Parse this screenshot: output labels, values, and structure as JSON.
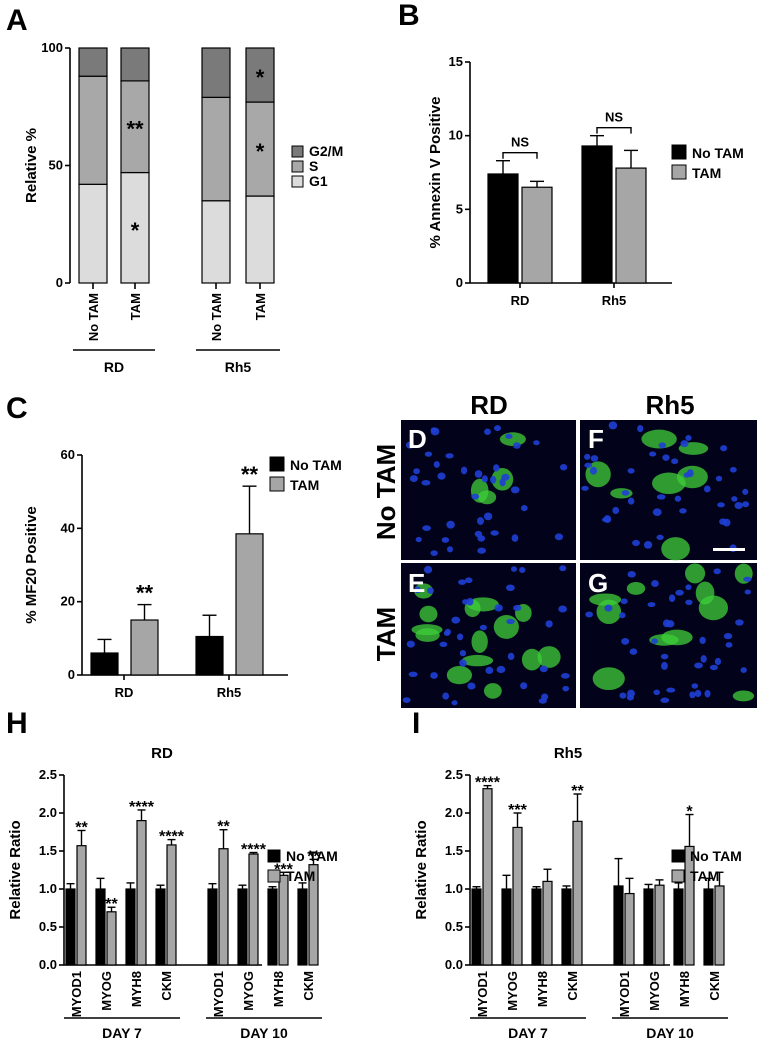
{
  "panels": {
    "A": {
      "letter": "A"
    },
    "B": {
      "letter": "B"
    },
    "C": {
      "letter": "C"
    },
    "D": {
      "letter": "D"
    },
    "E": {
      "letter": "E"
    },
    "F": {
      "letter": "F"
    },
    "G": {
      "letter": "G"
    },
    "H": {
      "letter": "H"
    },
    "I": {
      "letter": "I"
    }
  },
  "micrographs": {
    "column_labels": [
      "RD",
      "Rh5"
    ],
    "row_labels": [
      "No TAM",
      "TAM"
    ],
    "colors": {
      "nucleus": "#1f3fd6",
      "stain": "#3fcf3a",
      "background": "#02031a"
    }
  },
  "colors": {
    "black": "#000000",
    "dark_gray": "#7a7a7a",
    "mid_gray": "#a8a8a8",
    "light_gray": "#dcdcdc",
    "tam_gray": "#a6a6a6"
  },
  "chart_data": [
    {
      "id": "A",
      "type": "bar",
      "stacked": true,
      "ylabel": "Relative %",
      "ylim": [
        0,
        100
      ],
      "yticks": [
        0,
        50,
        100
      ],
      "categories": [
        "No TAM",
        "TAM",
        "No TAM",
        "TAM"
      ],
      "groups": [
        {
          "label": "RD",
          "categories": [
            0,
            1
          ]
        },
        {
          "label": "Rh5",
          "categories": [
            2,
            3
          ]
        }
      ],
      "series": [
        {
          "name": "G1",
          "values": [
            42,
            47,
            35,
            37
          ]
        },
        {
          "name": "S",
          "values": [
            46,
            39,
            44,
            40
          ]
        },
        {
          "name": "G2/M",
          "values": [
            12,
            14,
            21,
            23
          ]
        }
      ],
      "annotations": [
        {
          "category": 1,
          "series": "G1",
          "text": "*"
        },
        {
          "category": 1,
          "series": "S",
          "text": "**"
        },
        {
          "category": 3,
          "series": "S",
          "text": "*"
        },
        {
          "category": 3,
          "series": "G2/M",
          "text": "*"
        }
      ],
      "legend": {
        "placement": "right",
        "entries": [
          "G2/M",
          "S",
          "G1"
        ]
      }
    },
    {
      "id": "B",
      "type": "bar",
      "ylabel": "% Annexin V Positive",
      "ylim": [
        0,
        15
      ],
      "yticks": [
        0,
        5,
        10,
        15
      ],
      "categories": [
        "RD",
        "Rh5"
      ],
      "series": [
        {
          "name": "No TAM",
          "values": [
            7.4,
            9.3
          ],
          "errors": [
            0.9,
            0.7
          ]
        },
        {
          "name": "TAM",
          "values": [
            6.5,
            7.8
          ],
          "errors": [
            0.4,
            1.2
          ]
        }
      ],
      "annotations": [
        {
          "category": 0,
          "text": "NS"
        },
        {
          "category": 1,
          "text": "NS"
        }
      ],
      "legend": {
        "placement": "right",
        "entries": [
          "No TAM",
          "TAM"
        ]
      }
    },
    {
      "id": "C",
      "type": "bar",
      "ylabel": "% MF20 Positive",
      "ylim": [
        0,
        60
      ],
      "yticks": [
        0,
        20,
        40,
        60
      ],
      "categories": [
        "RD",
        "Rh5"
      ],
      "series": [
        {
          "name": "No TAM",
          "values": [
            6,
            10.5
          ],
          "errors": [
            3.7,
            5.8
          ]
        },
        {
          "name": "TAM",
          "values": [
            15,
            38.5
          ],
          "errors": [
            4.2,
            13
          ]
        }
      ],
      "annotations": [
        {
          "category": 0,
          "series": "TAM",
          "text": "**"
        },
        {
          "category": 1,
          "series": "TAM",
          "text": "**"
        }
      ],
      "legend": {
        "placement": "top-right",
        "entries": [
          "No TAM",
          "TAM"
        ]
      }
    },
    {
      "id": "H",
      "type": "bar",
      "title": "RD",
      "ylabel": "Relative Ratio",
      "ylim": [
        0,
        2.5
      ],
      "yticks": [
        "0.0",
        "0.5",
        "1.0",
        "1.5",
        "2.0",
        "2.5"
      ],
      "categories": [
        "MYOD1",
        "MYOG",
        "MYH8",
        "CKM",
        "MYOD1",
        "MYOG",
        "MYH8",
        "CKM"
      ],
      "groups": [
        {
          "label": "DAY 7",
          "categories": [
            0,
            1,
            2,
            3
          ]
        },
        {
          "label": "DAY 10",
          "categories": [
            4,
            5,
            6,
            7
          ]
        }
      ],
      "series": [
        {
          "name": "No TAM",
          "values": [
            1.0,
            1.0,
            1.0,
            1.0,
            1.0,
            1.0,
            1.0,
            1.0
          ],
          "errors": [
            0.07,
            0.14,
            0.08,
            0.05,
            0.07,
            0.05,
            0.03,
            0.08
          ]
        },
        {
          "name": "TAM",
          "values": [
            1.57,
            0.7,
            1.9,
            1.58,
            1.53,
            1.46,
            1.18,
            1.32
          ],
          "errors": [
            0.2,
            0.06,
            0.14,
            0.07,
            0.25,
            0.02,
            0.04,
            0.07
          ]
        }
      ],
      "annotations": [
        "**",
        "**",
        "****",
        "****",
        "**",
        "****",
        "***",
        "**"
      ],
      "legend": {
        "placement": "right",
        "entries": [
          "No TAM",
          "TAM"
        ]
      }
    },
    {
      "id": "I",
      "type": "bar",
      "title": "Rh5",
      "ylabel": "Relative Ratio",
      "ylim": [
        0,
        2.5
      ],
      "yticks": [
        "0.0",
        "0.5",
        "1.0",
        "1.5",
        "2.0",
        "2.5"
      ],
      "categories": [
        "MYOD1",
        "MYOG",
        "MYH8",
        "CKM",
        "MYOD1",
        "MYOG",
        "MYH8",
        "CKM"
      ],
      "groups": [
        {
          "label": "DAY 7",
          "categories": [
            0,
            1,
            2,
            3
          ]
        },
        {
          "label": "DAY 10",
          "categories": [
            4,
            5,
            6,
            7
          ]
        }
      ],
      "series": [
        {
          "name": "No TAM",
          "values": [
            1.0,
            1.0,
            1.0,
            1.0,
            1.04,
            1.0,
            1.0,
            1.0
          ],
          "errors": [
            0.03,
            0.18,
            0.03,
            0.04,
            0.36,
            0.06,
            0.08,
            0.14
          ]
        },
        {
          "name": "TAM",
          "values": [
            2.32,
            1.81,
            1.1,
            1.89,
            0.94,
            1.05,
            1.56,
            1.04
          ],
          "errors": [
            0.04,
            0.19,
            0.16,
            0.36,
            0.2,
            0.07,
            0.42,
            0.18
          ]
        }
      ],
      "annotations": [
        "****",
        "***",
        "",
        "**",
        "",
        "",
        "*",
        ""
      ],
      "legend": {
        "placement": "right",
        "entries": [
          "No TAM",
          "TAM"
        ]
      }
    }
  ]
}
